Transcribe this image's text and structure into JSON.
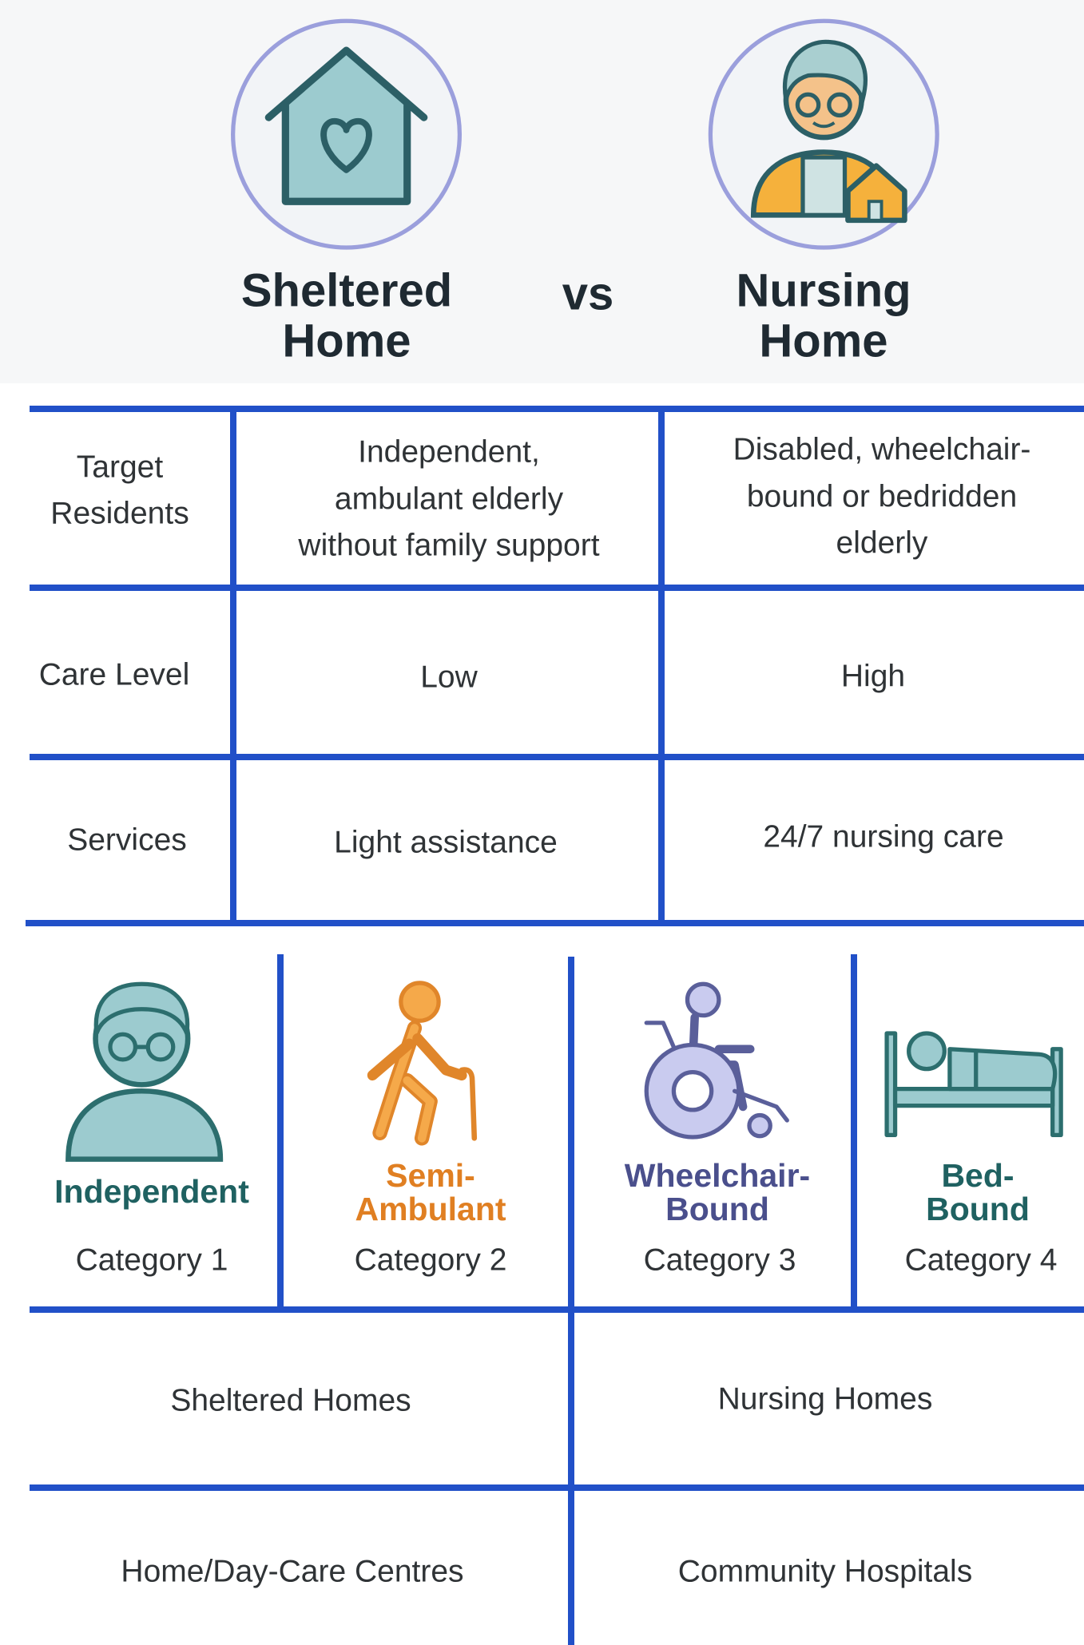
{
  "header": {
    "left_title": [
      "Sheltered",
      "Home"
    ],
    "vs": "vs",
    "right_title": [
      "Nursing",
      "Home"
    ]
  },
  "table": {
    "rows": [
      {
        "label": [
          "Target",
          "Residents"
        ],
        "sheltered": [
          "Independent,",
          "ambulant elderly",
          "without family support"
        ],
        "nursing": [
          "Disabled, wheelchair-",
          "bound or bedridden",
          "elderly"
        ]
      },
      {
        "label": [
          "Care Level"
        ],
        "sheltered": [
          "Low"
        ],
        "nursing": [
          "High"
        ]
      },
      {
        "label": [
          "Services"
        ],
        "sheltered": [
          "Light assistance"
        ],
        "nursing": [
          "24/7 nursing care"
        ]
      }
    ]
  },
  "categories": [
    {
      "tag": [
        "Independent"
      ],
      "label": "Category 1"
    },
    {
      "tag": [
        "Semi-",
        "Ambulant"
      ],
      "label": "Category 2"
    },
    {
      "tag": [
        "Wheelchair-",
        "Bound"
      ],
      "label": "Category 3"
    },
    {
      "tag": [
        "Bed-",
        "Bound"
      ],
      "label": "Category 4"
    }
  ],
  "facilities": {
    "rows": [
      [
        "Sheltered Homes",
        "Nursing Homes"
      ],
      [
        "Home/Day-Care Centres",
        "Community Hospitals"
      ]
    ]
  }
}
